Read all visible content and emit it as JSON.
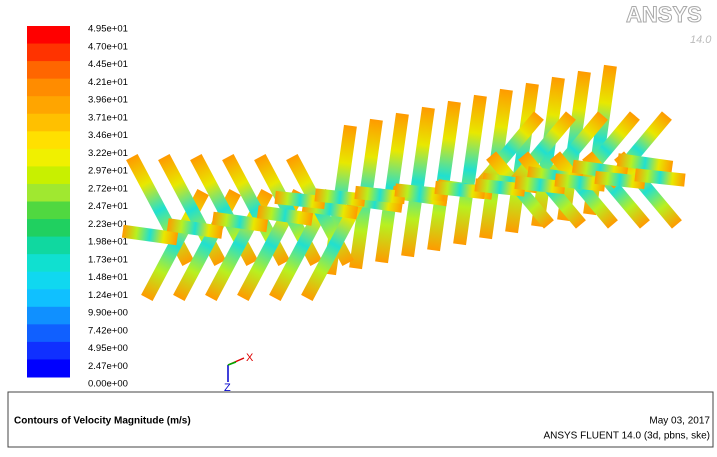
{
  "colorbar": {
    "labels": [
      "4.95e+01",
      "4.70e+01",
      "4.45e+01",
      "4.21e+01",
      "3.96e+01",
      "3.71e+01",
      "3.46e+01",
      "3.22e+01",
      "2.97e+01",
      "2.72e+01",
      "2.47e+01",
      "2.23e+01",
      "1.98e+01",
      "1.73e+01",
      "1.48e+01",
      "1.24e+01",
      "9.90e+00",
      "7.42e+00",
      "4.95e+00",
      "2.47e+00",
      "0.00e+00"
    ],
    "colors": [
      "#ff0000",
      "#ff3300",
      "#ff6600",
      "#ff8c00",
      "#ffa500",
      "#ffc000",
      "#ffe000",
      "#f0f000",
      "#c8f000",
      "#a0e830",
      "#50d840",
      "#20d060",
      "#10d8a0",
      "#10e0d0",
      "#10d8f0",
      "#10c0ff",
      "#1090ff",
      "#1060ff",
      "#1030ff",
      "#0000ff"
    ]
  },
  "logo": {
    "brand": "ANSYS",
    "version": "14.0"
  },
  "axes": {
    "x": "X",
    "z": "Z"
  },
  "footer": {
    "title": "Contours of Velocity Magnitude (m/s)",
    "date": "May 03, 2017",
    "solver": "ANSYS FLUENT 14.0 (3d, pbns, ske)"
  }
}
